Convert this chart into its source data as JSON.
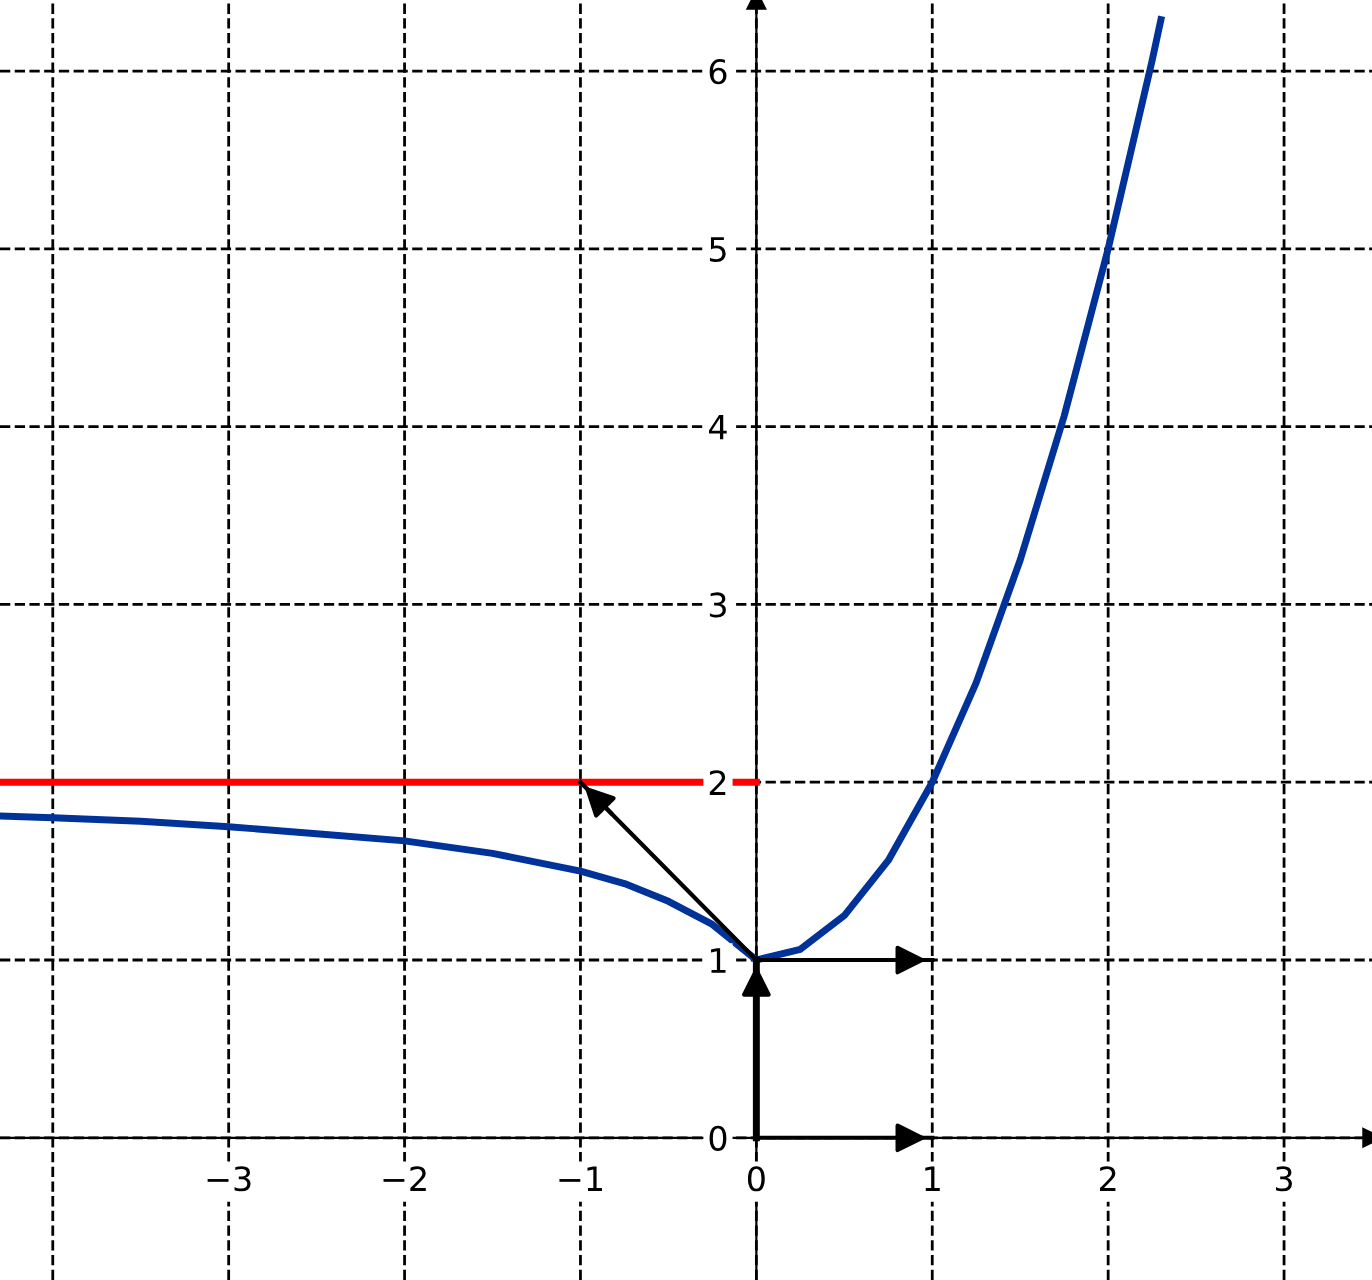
{
  "chart_data": {
    "type": "line",
    "xlim": [
      -4.3,
      3.5
    ],
    "ylim": [
      -0.8,
      6.4
    ],
    "xticks": [
      {
        "value": -4,
        "label": null
      },
      {
        "value": -3,
        "label": "−3"
      },
      {
        "value": -2,
        "label": "−2"
      },
      {
        "value": -1,
        "label": "−1"
      },
      0,
      1,
      2,
      3
    ],
    "yticks": [
      0,
      1,
      2,
      3,
      4,
      5,
      6
    ],
    "grid": true,
    "series": [
      {
        "color": "#003399",
        "x": [
          -4.3,
          -4,
          -3.5,
          -3,
          -2.5,
          -2,
          -1.5,
          -1,
          -0.75,
          -0.5,
          -0.25,
          0,
          0.25,
          0.5,
          0.75,
          1,
          1.25,
          1.5,
          1.75,
          2,
          2.25,
          2.3
        ],
        "values": [
          1.81,
          1.8,
          1.78,
          1.75,
          1.71,
          1.67,
          1.6,
          1.5,
          1.43,
          1.33,
          1.2,
          1,
          1.06,
          1.25,
          1.56,
          2,
          2.56,
          3.25,
          4.06,
          5,
          6.06,
          6.29
        ]
      },
      {
        "color": "#ff0000",
        "x": [
          -4.3,
          -2,
          0
        ],
        "values": [
          2,
          2,
          2
        ]
      },
      {
        "color": "#000000",
        "x": [
          0,
          1
        ],
        "values": [
          0,
          0
        ]
      },
      {
        "color": "#000000",
        "x": [
          0,
          0
        ],
        "values": [
          0,
          1
        ]
      },
      {
        "color": "#000000",
        "x": [
          0,
          1
        ],
        "values": [
          1,
          1
        ]
      },
      {
        "color": "#000000",
        "x": [
          0,
          -1
        ],
        "values": [
          1,
          2
        ]
      }
    ]
  }
}
